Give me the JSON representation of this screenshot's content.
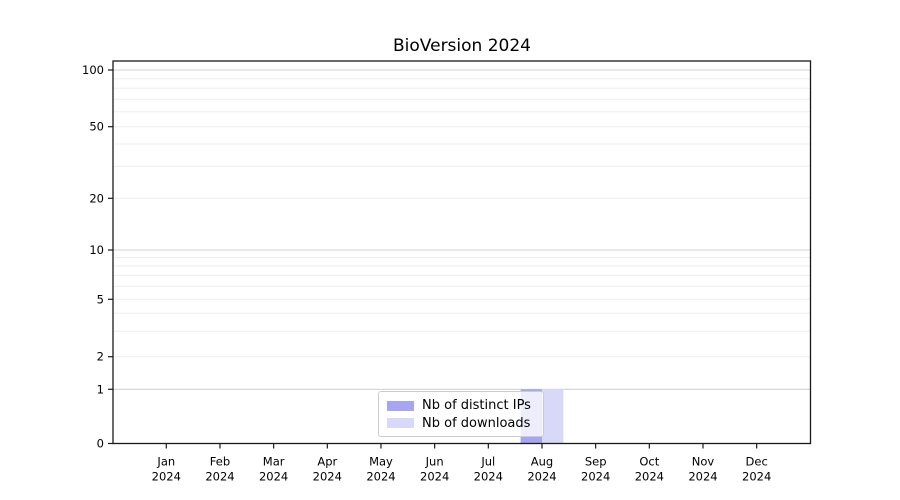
{
  "chart_data": {
    "type": "bar",
    "title": "BioVersion 2024",
    "categories": [
      "Jan 2024",
      "Feb 2024",
      "Mar 2024",
      "Apr 2024",
      "May 2024",
      "Jun 2024",
      "Jul 2024",
      "Aug 2024",
      "Sep 2024",
      "Oct 2024",
      "Nov 2024",
      "Dec 2024"
    ],
    "month_labels": [
      "Jan",
      "Feb",
      "Mar",
      "Apr",
      "May",
      "Jun",
      "Jul",
      "Aug",
      "Sep",
      "Oct",
      "Nov",
      "Dec"
    ],
    "year_label": "2024",
    "series": [
      {
        "name": "Nb of distinct IPs",
        "color": "#a5a5f0",
        "values": [
          0,
          0,
          0,
          0,
          0,
          0,
          0,
          1,
          0,
          0,
          0,
          0
        ]
      },
      {
        "name": "Nb of downloads",
        "color": "#d8d8f8",
        "values": [
          0,
          0,
          0,
          0,
          0,
          0,
          0,
          1,
          0,
          0,
          0,
          0
        ]
      }
    ],
    "xlabel": "",
    "ylabel": "",
    "yscale": "log-like with 0 baseline",
    "ytick_labels": [
      "100",
      "50",
      "20",
      "10",
      "5",
      "2",
      "1",
      "0"
    ],
    "ytick_values": [
      100,
      50,
      20,
      10,
      5,
      2,
      1,
      0
    ],
    "ylim": [
      0,
      115
    ],
    "grid": true,
    "major_gridline_values": [
      1,
      10,
      100
    ],
    "minor_gridline_values": [
      2,
      3,
      4,
      5,
      6,
      7,
      8,
      9,
      20,
      30,
      40,
      50,
      60,
      70,
      80,
      90
    ],
    "legend_position": "lower-center-inside",
    "colors": {
      "major_grid": "#d2d2d2",
      "minor_grid": "#ededed",
      "spine": "#1a1a1a",
      "background": "#ffffff"
    }
  }
}
